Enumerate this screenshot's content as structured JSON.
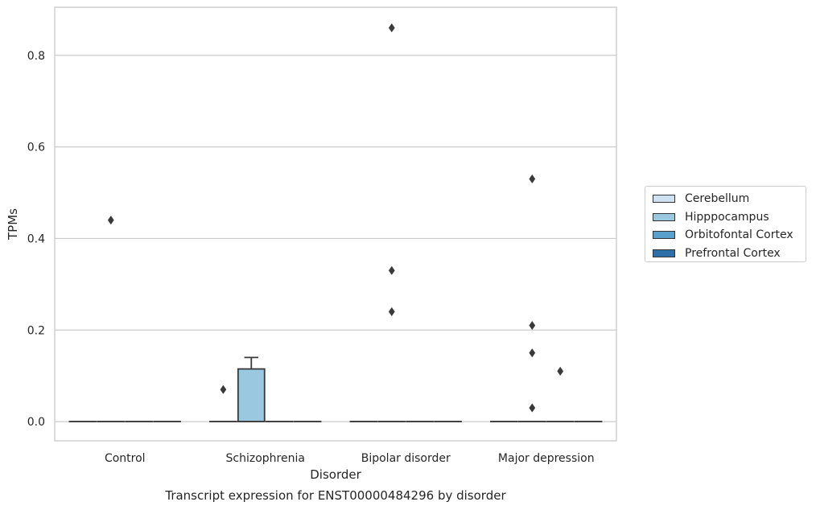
{
  "caption": "Transcript expression for ENST00000484296 by disorder",
  "colors": {
    "Cerebellum": "#d0e1f2",
    "Hipppocampus": "#9ac8e0",
    "Orbitofontal Cortex": "#5aa0cd",
    "Prefrontal Cortex": "#2c6fa9",
    "grid": "#cccccc",
    "box_edge": "#3a3a3a",
    "frame": "#cccccc"
  },
  "chart_data": {
    "type": "box",
    "xlabel": "Disorder",
    "ylabel": "TPMs",
    "ylim": [
      -0.042,
      0.905
    ],
    "yticks": [
      "0.0",
      "0.2",
      "0.4",
      "0.6",
      "0.8"
    ],
    "ytick_values": [
      0,
      0.2,
      0.4,
      0.6,
      0.8
    ],
    "grid": true,
    "legend_position": "center-right, outside plot",
    "categories": [
      "Control",
      "Schizophrenia",
      "Bipolar disorder",
      "Major depression"
    ],
    "series": [
      {
        "name": "Cerebellum",
        "boxes": [
          {
            "q1": 0,
            "median": 0,
            "q3": 0,
            "whisker_low": 0,
            "whisker_high": 0,
            "outliers": []
          },
          {
            "q1": 0,
            "median": 0,
            "q3": 0,
            "whisker_low": 0,
            "whisker_high": 0,
            "outliers": []
          },
          {
            "q1": 0,
            "median": 0,
            "q3": 0,
            "whisker_low": 0,
            "whisker_high": 0,
            "outliers": []
          },
          {
            "q1": 0,
            "median": 0,
            "q3": 0,
            "whisker_low": 0,
            "whisker_high": 0,
            "outliers": []
          }
        ]
      },
      {
        "name": "Hipppocampus",
        "boxes": [
          {
            "q1": 0,
            "median": 0,
            "q3": 0,
            "whisker_low": 0,
            "whisker_high": 0,
            "outliers": [
              0.44
            ]
          },
          {
            "q1": 0,
            "median": 0,
            "q3": 0.115,
            "whisker_low": 0,
            "whisker_high": 0.14,
            "outliers": []
          },
          {
            "q1": 0,
            "median": 0,
            "q3": 0,
            "whisker_low": 0,
            "whisker_high": 0,
            "outliers": [
              0.86,
              0.33,
              0.24
            ]
          },
          {
            "q1": 0,
            "median": 0,
            "q3": 0,
            "whisker_low": 0,
            "whisker_high": 0,
            "outliers": [
              0.53,
              0.21,
              0.15
            ]
          }
        ]
      },
      {
        "name": "Orbitofontal Cortex",
        "boxes": [
          {
            "q1": 0,
            "median": 0,
            "q3": 0,
            "whisker_low": 0,
            "whisker_high": 0,
            "outliers": []
          },
          {
            "q1": 0,
            "median": 0,
            "q3": 0,
            "whisker_low": 0,
            "whisker_high": 0,
            "outliers": []
          },
          {
            "q1": 0,
            "median": 0,
            "q3": 0,
            "whisker_low": 0,
            "whisker_high": 0,
            "outliers": []
          },
          {
            "q1": 0,
            "median": 0,
            "q3": 0,
            "whisker_low": 0,
            "whisker_high": 0,
            "outliers": [
              0.11
            ]
          }
        ]
      },
      {
        "name": "Prefrontal Cortex",
        "boxes": [
          {
            "q1": 0,
            "median": 0,
            "q3": 0,
            "whisker_low": 0,
            "whisker_high": 0,
            "outliers": []
          },
          {
            "q1": 0,
            "median": 0,
            "q3": 0,
            "whisker_low": 0,
            "whisker_high": 0,
            "outliers": []
          },
          {
            "q1": 0,
            "median": 0,
            "q3": 0,
            "whisker_low": 0,
            "whisker_high": 0,
            "outliers": []
          },
          {
            "q1": 0,
            "median": 0,
            "q3": 0,
            "whisker_low": 0,
            "whisker_high": 0,
            "outliers": []
          }
        ]
      }
    ],
    "extra_outliers": [
      {
        "category": "Schizophrenia",
        "series": "Cerebellum",
        "value": 0.07
      },
      {
        "category": "Major depression",
        "series": "Hipppocampus",
        "value": 0.03
      }
    ]
  }
}
